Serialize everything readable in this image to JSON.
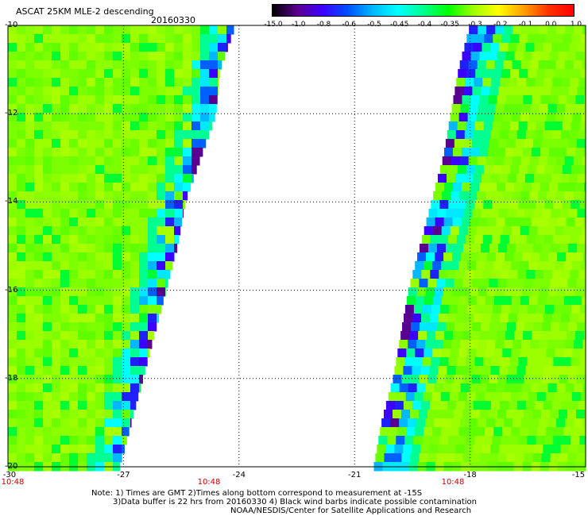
{
  "header": {
    "title": "ASCAT 25KM MLE-2 descending",
    "date": "20160330"
  },
  "colorbar": {
    "labels": [
      "-15.0",
      "-1.0",
      "-0.8",
      "-0.6",
      "-0.5",
      "-0.45",
      "-0.4",
      "-0.35",
      "-0.3",
      "-0.2",
      "-0.1",
      "0.0",
      "1.0"
    ],
    "colors": [
      "#000000",
      "#5a0090",
      "#3c00ff",
      "#0050ff",
      "#00b8ff",
      "#00ffff",
      "#00ff90",
      "#00ff00",
      "#9cff00",
      "#ffff00",
      "#ffa000",
      "#ff3000",
      "#ff0000"
    ]
  },
  "axes": {
    "lat_labels": [
      "-10",
      "-12",
      "-14",
      "-16",
      "-18",
      "-20"
    ],
    "lon_labels": [
      "-30",
      "-27",
      "-24",
      "-21",
      "-18",
      "-15"
    ],
    "times": [
      "10:48",
      "10:48",
      "10:48"
    ]
  },
  "footer": {
    "line1": "Note: 1) Times are GMT 2)Times along bottom correspond to measurement at -15S",
    "line2": "3)Data buffer is 22 hrs from 20160330 4) Black wind barbs indicate possible contamination",
    "line3": "NOAA/NESDIS/Center for Satellite Applications and Research"
  },
  "map_data": {
    "lon_range": [
      -30,
      -15
    ],
    "lat_range": [
      -20,
      -10
    ],
    "swaths": [
      {
        "name": "west-swath",
        "edge_lat": [
          -10,
          -11,
          -12,
          -13,
          -14,
          -15,
          -16,
          -17,
          -18,
          -19,
          -20
        ],
        "edge_lon": [
          -24.1,
          -24.5,
          -24.6,
          -25.0,
          -25.4,
          -25.6,
          -25.9,
          -26.2,
          -26.5,
          -26.8,
          -27.1
        ]
      },
      {
        "name": "east-swath",
        "edge_lat": [
          -10,
          -11,
          -12,
          -13,
          -14,
          -15,
          -16,
          -17,
          -18,
          -19,
          -20
        ],
        "edge_lon": [
          -18.0,
          -18.3,
          -18.5,
          -18.7,
          -19.0,
          -19.3,
          -19.6,
          -19.8,
          -20.0,
          -20.3,
          -20.5
        ]
      }
    ]
  }
}
